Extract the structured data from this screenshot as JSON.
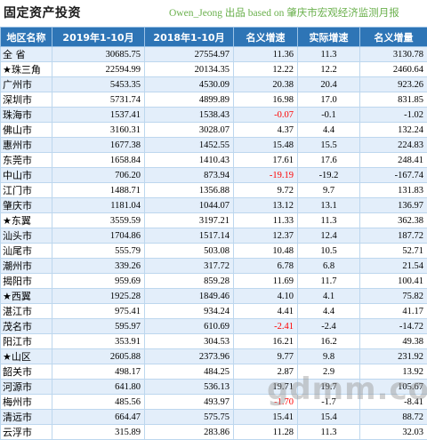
{
  "title": "固定资产投资",
  "subtitle": "Owen_Jeong 出品 based on 肇庆市宏观经济监测月报",
  "watermark": "gdmm.com",
  "colors": {
    "header_bg": "#2e75b6",
    "negative": "#ff0000",
    "stripe": "#e3eefa",
    "subtitle": "#6ab04c"
  },
  "table": {
    "headers": [
      "地区名称",
      "2019年1-10月",
      "2018年1-10月",
      "名义增速",
      "实际增速",
      "名义增量"
    ],
    "rows": [
      [
        "全  省",
        "30685.75",
        "27554.97",
        "11.36",
        "11.3",
        "3130.78"
      ],
      [
        "★珠三角",
        "22594.99",
        "20134.35",
        "12.22",
        "12.2",
        "2460.64"
      ],
      [
        "广州市",
        "5453.35",
        "4530.09",
        "20.38",
        "20.4",
        "923.26"
      ],
      [
        "深圳市",
        "5731.74",
        "4899.89",
        "16.98",
        "17.0",
        "831.85"
      ],
      [
        "珠海市",
        "1537.41",
        "1538.43",
        "-0.07",
        "-0.1",
        "-1.02"
      ],
      [
        "佛山市",
        "3160.31",
        "3028.07",
        "4.37",
        "4.4",
        "132.24"
      ],
      [
        "惠州市",
        "1677.38",
        "1452.55",
        "15.48",
        "15.5",
        "224.83"
      ],
      [
        "东莞市",
        "1658.84",
        "1410.43",
        "17.61",
        "17.6",
        "248.41"
      ],
      [
        "中山市",
        "706.20",
        "873.94",
        "-19.19",
        "-19.2",
        "-167.74"
      ],
      [
        "江门市",
        "1488.71",
        "1356.88",
        "9.72",
        "9.7",
        "131.83"
      ],
      [
        "肇庆市",
        "1181.04",
        "1044.07",
        "13.12",
        "13.1",
        "136.97"
      ],
      [
        "★东翼",
        "3559.59",
        "3197.21",
        "11.33",
        "11.3",
        "362.38"
      ],
      [
        "汕头市",
        "1704.86",
        "1517.14",
        "12.37",
        "12.4",
        "187.72"
      ],
      [
        "汕尾市",
        "555.79",
        "503.08",
        "10.48",
        "10.5",
        "52.71"
      ],
      [
        "潮州市",
        "339.26",
        "317.72",
        "6.78",
        "6.8",
        "21.54"
      ],
      [
        "揭阳市",
        "959.69",
        "859.28",
        "11.69",
        "11.7",
        "100.41"
      ],
      [
        "★西翼",
        "1925.28",
        "1849.46",
        "4.10",
        "4.1",
        "75.82"
      ],
      [
        "湛江市",
        "975.41",
        "934.24",
        "4.41",
        "4.4",
        "41.17"
      ],
      [
        "茂名市",
        "595.97",
        "610.69",
        "-2.41",
        "-2.4",
        "-14.72"
      ],
      [
        "阳江市",
        "353.91",
        "304.53",
        "16.21",
        "16.2",
        "49.38"
      ],
      [
        "★山区",
        "2605.88",
        "2373.96",
        "9.77",
        "9.8",
        "231.92"
      ],
      [
        "韶关市",
        "498.17",
        "484.25",
        "2.87",
        "2.9",
        "13.92"
      ],
      [
        "河源市",
        "641.80",
        "536.13",
        "19.71",
        "19.7",
        "105.67"
      ],
      [
        "梅州市",
        "485.56",
        "493.97",
        "-1.70",
        "-1.7",
        "-8.41"
      ],
      [
        "清远市",
        "664.47",
        "575.75",
        "15.41",
        "15.4",
        "88.72"
      ],
      [
        "云浮市",
        "315.89",
        "283.86",
        "11.28",
        "11.3",
        "32.03"
      ]
    ]
  }
}
